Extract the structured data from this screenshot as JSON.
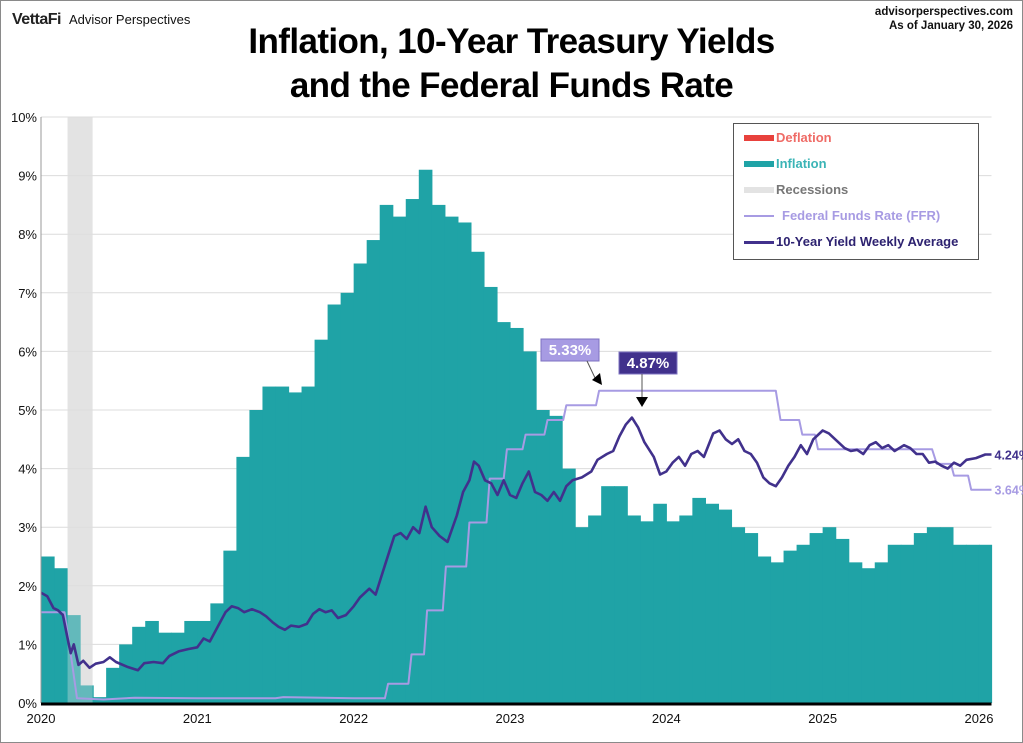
{
  "header": {
    "logo": "VettaFi",
    "brand": "Advisor Perspectives",
    "source": "advisorperspectives.com",
    "as_of": "As of January 30, 2026"
  },
  "colors": {
    "deflation": "#e8413c",
    "inflation": "#1fa3a6",
    "recession": "#e3e3e3",
    "ffr": "#a79be3",
    "yield": "#41318c",
    "grid": "#dcdcdc"
  },
  "legend": {
    "items": [
      {
        "label": "Deflation",
        "kind": "swatch",
        "color": "#e8413c",
        "text_color": "#ef6b66"
      },
      {
        "label": "Inflation",
        "kind": "swatch",
        "color": "#1fa3a6",
        "text_color": "#3bb4b6"
      },
      {
        "label": "Recessions",
        "kind": "swatch",
        "color": "#e3e3e3",
        "text_color": "#777777"
      },
      {
        "label": "Federal Funds Rate (FFR)",
        "kind": "line",
        "color": "#a79be3",
        "text_color": "#a79be3"
      },
      {
        "label": "10-Year Yield Weekly Average",
        "kind": "line-thick",
        "color": "#41318c",
        "text_color": "#2d2270"
      }
    ]
  },
  "chart_data": {
    "type": "area",
    "title": "Inflation, 10-Year Treasury Yields and the Federal Funds Rate",
    "xlabel": "",
    "ylabel": "",
    "xlim": [
      2020,
      2026.08
    ],
    "ylim": [
      0,
      10
    ],
    "x_ticks": [
      "2020",
      "2021",
      "2022",
      "2023",
      "2024",
      "2025",
      "2026"
    ],
    "y_ticks": [
      "0%",
      "1%",
      "2%",
      "3%",
      "4%",
      "5%",
      "6%",
      "7%",
      "8%",
      "9%",
      "10%"
    ],
    "grid": true,
    "legend_position": "top-right",
    "recessions": [
      {
        "start": 2020.17,
        "end": 2020.33
      }
    ],
    "inflation": {
      "name": "Inflation",
      "x_start": 2020.0,
      "step": 0.08333,
      "values": [
        2.5,
        2.3,
        1.5,
        0.3,
        0.1,
        0.6,
        1.0,
        1.3,
        1.4,
        1.2,
        1.2,
        1.4,
        1.4,
        1.7,
        2.6,
        4.2,
        5.0,
        5.4,
        5.4,
        5.3,
        5.4,
        6.2,
        6.8,
        7.0,
        7.5,
        7.9,
        8.5,
        8.3,
        8.6,
        9.1,
        8.5,
        8.3,
        8.2,
        7.7,
        7.1,
        6.5,
        6.4,
        6.0,
        5.0,
        4.9,
        4.0,
        3.0,
        3.2,
        3.7,
        3.7,
        3.2,
        3.1,
        3.4,
        3.1,
        3.2,
        3.5,
        3.4,
        3.3,
        3.0,
        2.9,
        2.5,
        2.4,
        2.6,
        2.7,
        2.9,
        3.0,
        2.8,
        2.4,
        2.3,
        2.4,
        2.7,
        2.7,
        2.9,
        3.0,
        3.0,
        2.7,
        2.7,
        2.7,
        2.7
      ]
    },
    "series": [
      {
        "name": "Federal Funds Rate (FFR)",
        "end_label": "3.64%",
        "points": [
          [
            2020.0,
            1.55
          ],
          [
            2020.15,
            1.55
          ],
          [
            2020.2,
            0.65
          ],
          [
            2020.23,
            0.08
          ],
          [
            2020.4,
            0.06
          ],
          [
            2020.6,
            0.09
          ],
          [
            2021.0,
            0.08
          ],
          [
            2021.5,
            0.08
          ],
          [
            2021.55,
            0.1
          ],
          [
            2022.0,
            0.08
          ],
          [
            2022.2,
            0.08
          ],
          [
            2022.22,
            0.33
          ],
          [
            2022.35,
            0.33
          ],
          [
            2022.37,
            0.83
          ],
          [
            2022.45,
            0.83
          ],
          [
            2022.47,
            1.58
          ],
          [
            2022.57,
            1.58
          ],
          [
            2022.59,
            2.33
          ],
          [
            2022.72,
            2.33
          ],
          [
            2022.74,
            3.08
          ],
          [
            2022.85,
            3.08
          ],
          [
            2022.87,
            3.83
          ],
          [
            2022.96,
            3.83
          ],
          [
            2022.98,
            4.33
          ],
          [
            2023.08,
            4.33
          ],
          [
            2023.1,
            4.58
          ],
          [
            2023.22,
            4.58
          ],
          [
            2023.24,
            4.83
          ],
          [
            2023.34,
            4.83
          ],
          [
            2023.36,
            5.08
          ],
          [
            2023.55,
            5.08
          ],
          [
            2023.57,
            5.33
          ],
          [
            2024.7,
            5.33
          ],
          [
            2024.73,
            4.83
          ],
          [
            2024.85,
            4.83
          ],
          [
            2024.87,
            4.58
          ],
          [
            2024.95,
            4.58
          ],
          [
            2024.97,
            4.33
          ],
          [
            2025.7,
            4.33
          ],
          [
            2025.73,
            4.08
          ],
          [
            2025.82,
            4.08
          ],
          [
            2025.84,
            3.88
          ],
          [
            2025.93,
            3.88
          ],
          [
            2025.95,
            3.64
          ],
          [
            2026.08,
            3.64
          ]
        ],
        "callout": {
          "label": "5.33%",
          "x": 2023.57,
          "y": 5.33
        }
      },
      {
        "name": "10-Year Yield Weekly Average",
        "end_label": "4.24%",
        "points": [
          [
            2020.0,
            1.88
          ],
          [
            2020.04,
            1.82
          ],
          [
            2020.08,
            1.62
          ],
          [
            2020.11,
            1.58
          ],
          [
            2020.14,
            1.5
          ],
          [
            2020.17,
            1.1
          ],
          [
            2020.19,
            0.85
          ],
          [
            2020.21,
            1.0
          ],
          [
            2020.24,
            0.65
          ],
          [
            2020.27,
            0.72
          ],
          [
            2020.31,
            0.6
          ],
          [
            2020.35,
            0.67
          ],
          [
            2020.4,
            0.7
          ],
          [
            2020.44,
            0.78
          ],
          [
            2020.48,
            0.7
          ],
          [
            2020.55,
            0.62
          ],
          [
            2020.62,
            0.56
          ],
          [
            2020.66,
            0.68
          ],
          [
            2020.72,
            0.7
          ],
          [
            2020.78,
            0.68
          ],
          [
            2020.82,
            0.8
          ],
          [
            2020.88,
            0.88
          ],
          [
            2020.94,
            0.92
          ],
          [
            2021.0,
            0.95
          ],
          [
            2021.04,
            1.1
          ],
          [
            2021.08,
            1.05
          ],
          [
            2021.13,
            1.3
          ],
          [
            2021.18,
            1.55
          ],
          [
            2021.22,
            1.65
          ],
          [
            2021.26,
            1.62
          ],
          [
            2021.3,
            1.55
          ],
          [
            2021.35,
            1.6
          ],
          [
            2021.4,
            1.55
          ],
          [
            2021.44,
            1.48
          ],
          [
            2021.48,
            1.38
          ],
          [
            2021.52,
            1.3
          ],
          [
            2021.56,
            1.25
          ],
          [
            2021.6,
            1.32
          ],
          [
            2021.65,
            1.3
          ],
          [
            2021.7,
            1.35
          ],
          [
            2021.74,
            1.52
          ],
          [
            2021.78,
            1.6
          ],
          [
            2021.82,
            1.55
          ],
          [
            2021.86,
            1.58
          ],
          [
            2021.9,
            1.45
          ],
          [
            2021.95,
            1.5
          ],
          [
            2022.0,
            1.65
          ],
          [
            2022.04,
            1.8
          ],
          [
            2022.1,
            1.95
          ],
          [
            2022.14,
            1.85
          ],
          [
            2022.2,
            2.35
          ],
          [
            2022.26,
            2.85
          ],
          [
            2022.3,
            2.9
          ],
          [
            2022.34,
            2.8
          ],
          [
            2022.38,
            3.0
          ],
          [
            2022.42,
            2.9
          ],
          [
            2022.46,
            3.35
          ],
          [
            2022.5,
            3.0
          ],
          [
            2022.55,
            2.85
          ],
          [
            2022.6,
            2.75
          ],
          [
            2022.66,
            3.2
          ],
          [
            2022.7,
            3.6
          ],
          [
            2022.74,
            3.8
          ],
          [
            2022.77,
            4.12
          ],
          [
            2022.8,
            4.05
          ],
          [
            2022.84,
            3.8
          ],
          [
            2022.88,
            3.75
          ],
          [
            2022.92,
            3.55
          ],
          [
            2022.96,
            3.8
          ],
          [
            2023.0,
            3.55
          ],
          [
            2023.04,
            3.5
          ],
          [
            2023.08,
            3.75
          ],
          [
            2023.12,
            3.95
          ],
          [
            2023.16,
            3.6
          ],
          [
            2023.2,
            3.55
          ],
          [
            2023.24,
            3.45
          ],
          [
            2023.28,
            3.6
          ],
          [
            2023.32,
            3.45
          ],
          [
            2023.36,
            3.7
          ],
          [
            2023.4,
            3.8
          ],
          [
            2023.46,
            3.85
          ],
          [
            2023.52,
            3.95
          ],
          [
            2023.56,
            4.15
          ],
          [
            2023.62,
            4.25
          ],
          [
            2023.66,
            4.3
          ],
          [
            2023.7,
            4.55
          ],
          [
            2023.74,
            4.75
          ],
          [
            2023.78,
            4.87
          ],
          [
            2023.82,
            4.7
          ],
          [
            2023.86,
            4.45
          ],
          [
            2023.92,
            4.2
          ],
          [
            2023.96,
            3.9
          ],
          [
            2024.0,
            3.95
          ],
          [
            2024.04,
            4.1
          ],
          [
            2024.08,
            4.2
          ],
          [
            2024.12,
            4.05
          ],
          [
            2024.16,
            4.25
          ],
          [
            2024.2,
            4.3
          ],
          [
            2024.24,
            4.2
          ],
          [
            2024.3,
            4.6
          ],
          [
            2024.34,
            4.65
          ],
          [
            2024.38,
            4.5
          ],
          [
            2024.42,
            4.42
          ],
          [
            2024.46,
            4.5
          ],
          [
            2024.5,
            4.3
          ],
          [
            2024.54,
            4.25
          ],
          [
            2024.58,
            4.1
          ],
          [
            2024.62,
            3.85
          ],
          [
            2024.66,
            3.75
          ],
          [
            2024.7,
            3.7
          ],
          [
            2024.74,
            3.85
          ],
          [
            2024.78,
            4.05
          ],
          [
            2024.82,
            4.2
          ],
          [
            2024.86,
            4.4
          ],
          [
            2024.9,
            4.25
          ],
          [
            2024.94,
            4.5
          ],
          [
            2025.0,
            4.65
          ],
          [
            2025.04,
            4.6
          ],
          [
            2025.08,
            4.5
          ],
          [
            2025.14,
            4.35
          ],
          [
            2025.18,
            4.3
          ],
          [
            2025.22,
            4.32
          ],
          [
            2025.26,
            4.25
          ],
          [
            2025.3,
            4.4
          ],
          [
            2025.34,
            4.45
          ],
          [
            2025.38,
            4.35
          ],
          [
            2025.42,
            4.4
          ],
          [
            2025.46,
            4.3
          ],
          [
            2025.52,
            4.4
          ],
          [
            2025.56,
            4.35
          ],
          [
            2025.6,
            4.25
          ],
          [
            2025.64,
            4.25
          ],
          [
            2025.68,
            4.1
          ],
          [
            2025.72,
            4.12
          ],
          [
            2025.76,
            4.05
          ],
          [
            2025.8,
            4.0
          ],
          [
            2025.84,
            4.1
          ],
          [
            2025.88,
            4.05
          ],
          [
            2025.92,
            4.15
          ],
          [
            2025.98,
            4.18
          ],
          [
            2026.04,
            4.24
          ],
          [
            2026.08,
            4.24
          ]
        ],
        "callout": {
          "label": "4.87%",
          "x": 2023.78,
          "y": 4.87
        }
      }
    ]
  }
}
